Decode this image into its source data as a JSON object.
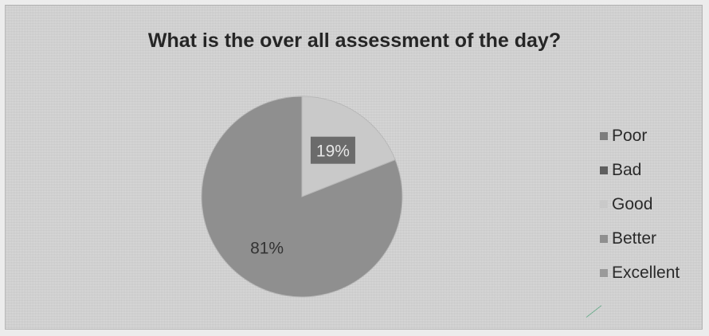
{
  "chart_data": {
    "type": "pie",
    "title": "What is the over all assessment of the day?",
    "categories": [
      "Poor",
      "Bad",
      "Good",
      "Better",
      "Excellent"
    ],
    "values": [
      0,
      0,
      19,
      81,
      0
    ],
    "data_labels": [
      "",
      "",
      "19%",
      "81%",
      ""
    ],
    "colors": [
      "#7d7d7d",
      "#5f5f5f",
      "#c9c9c9",
      "#8f8f8f",
      "#9a9a9a"
    ],
    "legend_position": "right"
  },
  "legend": {
    "items": [
      {
        "label": "Poor",
        "color": "#7d7d7d"
      },
      {
        "label": "Bad",
        "color": "#5f5f5f"
      },
      {
        "label": "Good",
        "color": "#c9c9c9"
      },
      {
        "label": "Better",
        "color": "#8f8f8f"
      },
      {
        "label": "Excellent",
        "color": "#9a9a9a"
      }
    ]
  }
}
